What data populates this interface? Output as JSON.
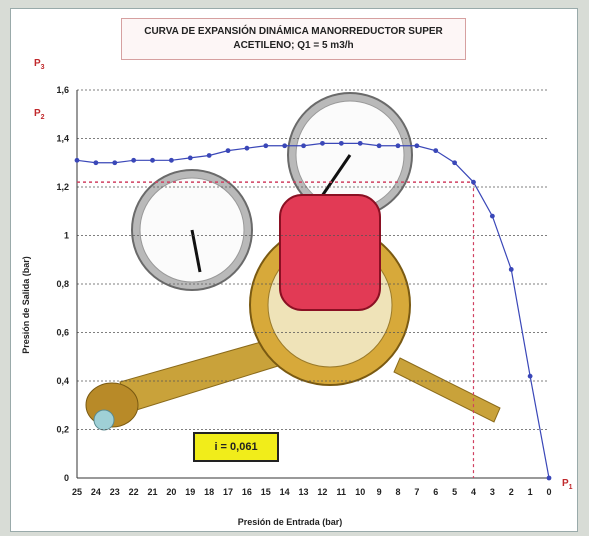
{
  "chart_data": {
    "type": "line",
    "title_line1": "CURVA DE EXPANSIÓN DINÁMICA MANORREDUCTOR SUPER",
    "title_line2": "ACETILENO; Q1 = 5 m3/h",
    "xlabel": "Presión de Entrada  (bar)",
    "ylabel": "Presión de Salida  (bar)",
    "x_reversed": true,
    "xlim": [
      0,
      25
    ],
    "ylim": [
      0,
      1.6
    ],
    "x_ticks": [
      25,
      24,
      23,
      22,
      21,
      20,
      19,
      18,
      17,
      16,
      15,
      14,
      13,
      12,
      11,
      10,
      9,
      8,
      7,
      6,
      5,
      4,
      3,
      2,
      1,
      0
    ],
    "y_ticks": [
      0,
      0.2,
      0.4,
      0.6,
      0.8,
      1,
      1.2,
      1.4,
      1.6
    ],
    "y_tick_labels": [
      "0",
      "0,2",
      "0,4",
      "0,6",
      "0,8",
      "1",
      "1,2",
      "1,4",
      "1,6"
    ],
    "grid": true,
    "series": [
      {
        "color": "#3a47b8",
        "x": [
          25,
          24,
          23,
          22,
          21,
          20,
          19,
          18,
          17,
          16,
          15,
          14,
          13,
          12,
          11,
          10,
          9,
          8,
          7,
          6,
          5,
          4,
          3,
          2,
          1,
          0
        ],
        "y": [
          1.31,
          1.3,
          1.3,
          1.31,
          1.31,
          1.31,
          1.32,
          1.33,
          1.35,
          1.36,
          1.37,
          1.37,
          1.37,
          1.38,
          1.38,
          1.38,
          1.37,
          1.37,
          1.37,
          1.35,
          1.3,
          1.22,
          1.08,
          0.86,
          0.42,
          0.0
        ]
      }
    ],
    "reference_lines": {
      "y": 1.22,
      "x": 4,
      "color": "#d04060"
    },
    "annotation": "i = 0,061",
    "markers": {
      "p3": "P",
      "p3_sub": "3",
      "p2": "P",
      "p2_sub": "2",
      "p1": "P",
      "p1_sub": "1"
    }
  }
}
